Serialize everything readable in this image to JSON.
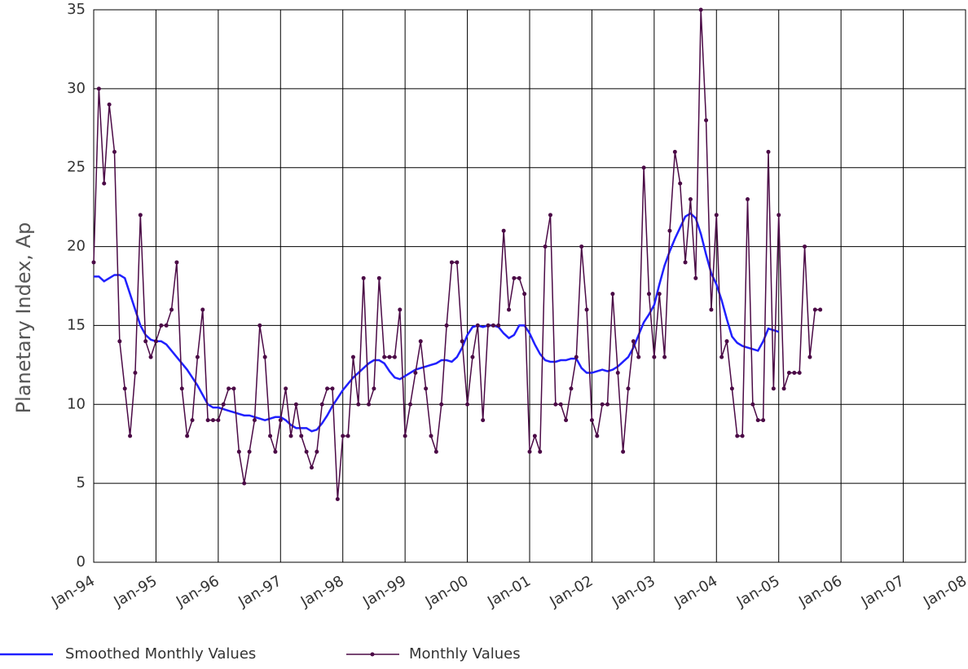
{
  "chart_data": {
    "type": "line",
    "y_label": "Planetary Index, Ap",
    "x": [
      "1994-01",
      "1994-02",
      "1994-03",
      "1994-04",
      "1994-05",
      "1994-06",
      "1994-07",
      "1994-08",
      "1994-09",
      "1994-10",
      "1994-11",
      "1994-12",
      "1995-01",
      "1995-02",
      "1995-03",
      "1995-04",
      "1995-05",
      "1995-06",
      "1995-07",
      "1995-08",
      "1995-09",
      "1995-10",
      "1995-11",
      "1995-12",
      "1996-01",
      "1996-02",
      "1996-03",
      "1996-04",
      "1996-05",
      "1996-06",
      "1996-07",
      "1996-08",
      "1996-09",
      "1996-10",
      "1996-11",
      "1996-12",
      "1997-01",
      "1997-02",
      "1997-03",
      "1997-04",
      "1997-05",
      "1997-06",
      "1997-07",
      "1997-08",
      "1997-09",
      "1997-10",
      "1997-11",
      "1997-12",
      "1998-01",
      "1998-02",
      "1998-03",
      "1998-04",
      "1998-05",
      "1998-06",
      "1998-07",
      "1998-08",
      "1998-09",
      "1998-10",
      "1998-11",
      "1998-12",
      "1999-01",
      "1999-02",
      "1999-03",
      "1999-04",
      "1999-05",
      "1999-06",
      "1999-07",
      "1999-08",
      "1999-09",
      "1999-10",
      "1999-11",
      "1999-12",
      "2000-01",
      "2000-02",
      "2000-03",
      "2000-04",
      "2000-05",
      "2000-06",
      "2000-07",
      "2000-08",
      "2000-09",
      "2000-10",
      "2000-11",
      "2000-12",
      "2001-01",
      "2001-02",
      "2001-03",
      "2001-04",
      "2001-05",
      "2001-06",
      "2001-07",
      "2001-08",
      "2001-09",
      "2001-10",
      "2001-11",
      "2001-12",
      "2002-01",
      "2002-02",
      "2002-03",
      "2002-04",
      "2002-05",
      "2002-06",
      "2002-07",
      "2002-08",
      "2002-09",
      "2002-10",
      "2002-11",
      "2002-12",
      "2003-01",
      "2003-02",
      "2003-03",
      "2003-04",
      "2003-05",
      "2003-06",
      "2003-07",
      "2003-08",
      "2003-09",
      "2003-10",
      "2003-11",
      "2003-12",
      "2004-01",
      "2004-02",
      "2004-03",
      "2004-04",
      "2004-05",
      "2004-06",
      "2004-07",
      "2004-08",
      "2004-09",
      "2004-10",
      "2004-11",
      "2004-12",
      "2005-01",
      "2005-02",
      "2005-03",
      "2005-04",
      "2005-05",
      "2005-06",
      "2005-07",
      "2005-08",
      "2005-09"
    ],
    "series": [
      {
        "name": "Smoothed Monthly Values",
        "color": "#2020ff",
        "markers": false,
        "values": [
          18.1,
          18.1,
          17.8,
          18.0,
          18.2,
          18.2,
          18.0,
          17.0,
          16.0,
          15.0,
          14.4,
          14.1,
          14.0,
          14.0,
          13.8,
          13.4,
          13.0,
          12.6,
          12.2,
          11.7,
          11.2,
          10.6,
          10.0,
          9.8,
          9.8,
          9.7,
          9.6,
          9.5,
          9.4,
          9.3,
          9.3,
          9.2,
          9.1,
          9.0,
          9.1,
          9.2,
          9.2,
          9.0,
          8.7,
          8.5,
          8.5,
          8.5,
          8.3,
          8.4,
          8.8,
          9.3,
          9.9,
          10.4,
          10.9,
          11.3,
          11.7,
          12.0,
          12.3,
          12.6,
          12.8,
          12.8,
          12.6,
          12.1,
          11.7,
          11.6,
          11.8,
          12.0,
          12.2,
          12.3,
          12.4,
          12.5,
          12.6,
          12.8,
          12.8,
          12.7,
          13.0,
          13.6,
          14.4,
          14.9,
          15.0,
          14.9,
          15.0,
          15.0,
          14.9,
          14.5,
          14.2,
          14.4,
          15.0,
          15.0,
          14.5,
          13.8,
          13.2,
          12.8,
          12.7,
          12.7,
          12.8,
          12.8,
          12.9,
          12.9,
          12.3,
          12.0,
          12.0,
          12.1,
          12.2,
          12.1,
          12.2,
          12.4,
          12.7,
          13.0,
          13.6,
          14.4,
          15.2,
          15.7,
          16.3,
          17.6,
          18.8,
          19.7,
          20.5,
          21.2,
          21.9,
          22.1,
          21.8,
          20.8,
          19.5,
          18.3,
          17.6,
          16.6,
          15.4,
          14.3,
          13.9,
          13.7,
          13.6,
          13.5,
          13.4,
          14.0,
          14.8,
          14.7,
          14.6,
          null,
          null,
          null,
          null,
          null,
          null,
          null,
          null
        ]
      },
      {
        "name": "Monthly Values",
        "color": "#4b0a46",
        "markers": true,
        "values": [
          19,
          30,
          24,
          29,
          26,
          14,
          11,
          8,
          12,
          22,
          14,
          13,
          14,
          15,
          15,
          16,
          19,
          11,
          8,
          9,
          13,
          16,
          9,
          9,
          9,
          10,
          11,
          11,
          7,
          5,
          7,
          9,
          15,
          13,
          8,
          7,
          9,
          11,
          8,
          10,
          8,
          7,
          6,
          7,
          10,
          11,
          11,
          4,
          8,
          8,
          13,
          10,
          18,
          10,
          11,
          18,
          13,
          13,
          13,
          16,
          8,
          10,
          12,
          14,
          11,
          8,
          7,
          10,
          15,
          19,
          19,
          14,
          10,
          13,
          15,
          9,
          15,
          15,
          15,
          21,
          16,
          18,
          18,
          17,
          7,
          8,
          7,
          20,
          22,
          10,
          10,
          9,
          11,
          13,
          20,
          16,
          9,
          8,
          10,
          10,
          17,
          12,
          7,
          11,
          14,
          13,
          25,
          17,
          13,
          17,
          13,
          21,
          26,
          24,
          19,
          23,
          18,
          35,
          28,
          16,
          22,
          13,
          14,
          11,
          8,
          8,
          23,
          10,
          9,
          9,
          26,
          11,
          22,
          11,
          12,
          12,
          12,
          20,
          13,
          16,
          16
        ]
      }
    ],
    "xlim": [
      "1994-01",
      "2008-01"
    ],
    "xticks": [
      {
        "value": "1994-01",
        "label": "Jan-94"
      },
      {
        "value": "1995-01",
        "label": "Jan-95"
      },
      {
        "value": "1996-01",
        "label": "Jan-96"
      },
      {
        "value": "1997-01",
        "label": "Jan-97"
      },
      {
        "value": "1998-01",
        "label": "Jan-98"
      },
      {
        "value": "1999-01",
        "label": "Jan-99"
      },
      {
        "value": "2000-01",
        "label": "Jan-00"
      },
      {
        "value": "2001-01",
        "label": "Jan-01"
      },
      {
        "value": "2002-01",
        "label": "Jan-02"
      },
      {
        "value": "2003-01",
        "label": "Jan-03"
      },
      {
        "value": "2004-01",
        "label": "Jan-04"
      },
      {
        "value": "2005-01",
        "label": "Jan-05"
      },
      {
        "value": "2006-01",
        "label": "Jan-06"
      },
      {
        "value": "2007-01",
        "label": "Jan-07"
      },
      {
        "value": "2008-01",
        "label": "Jan-08"
      }
    ],
    "ylim": [
      0,
      35
    ],
    "yticks": [
      0,
      5,
      10,
      15,
      20,
      25,
      30,
      35
    ],
    "grid": true
  }
}
